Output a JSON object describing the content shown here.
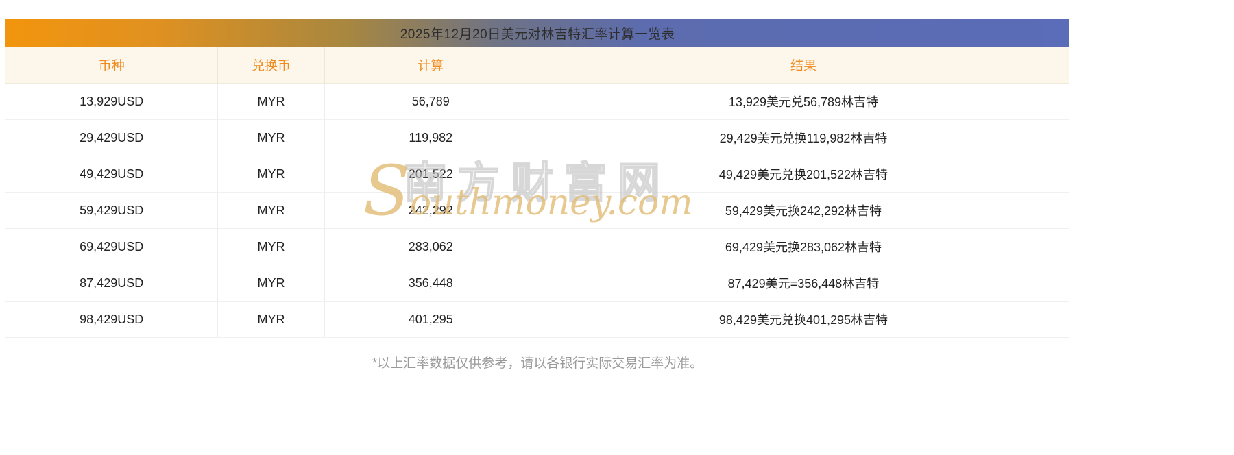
{
  "title": "2025年12月20日美元对林吉特汇率计算一览表",
  "table": {
    "headers": [
      "币种",
      "兑换币",
      "计算",
      "结果"
    ],
    "rows": [
      [
        "13,929USD",
        "MYR",
        "56,789",
        "13,929美元兑56,789林吉特"
      ],
      [
        "29,429USD",
        "MYR",
        "119,982",
        "29,429美元兑换119,982林吉特"
      ],
      [
        "49,429USD",
        "MYR",
        "201,522",
        "49,429美元兑换201,522林吉特"
      ],
      [
        "59,429USD",
        "MYR",
        "242,292",
        "59,429美元换242,292林吉特"
      ],
      [
        "69,429USD",
        "MYR",
        "283,062",
        "69,429美元换283,062林吉特"
      ],
      [
        "87,429USD",
        "MYR",
        "356,448",
        "87,429美元=356,448林吉特"
      ],
      [
        "98,429USD",
        "MYR",
        "401,295",
        "98,429美元兑换401,295林吉特"
      ]
    ]
  },
  "watermark": {
    "cn": "南方财富网",
    "en": "Southmoney.com"
  },
  "footer_note": "*以上汇率数据仅供参考，请以各银行实际交易汇率为准。",
  "colors": {
    "banner_left": "#f2950e",
    "banner_right": "#5c6cae",
    "header_text": "#f08b1e",
    "header_bg": "#fdf6ea",
    "watermark_gold": "#e2bc74"
  }
}
